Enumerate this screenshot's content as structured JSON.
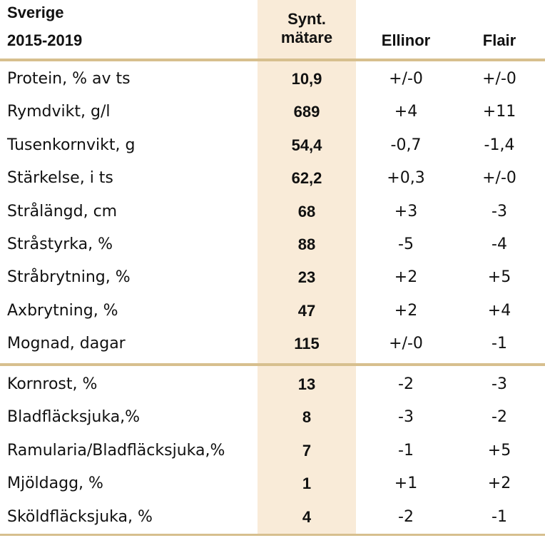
{
  "header": {
    "title_line1": "Sverige",
    "title_line2": "2015-2019",
    "col_synt_line1": "Synt.",
    "col_synt_line2": "mätare",
    "col_ellinor": "Ellinor",
    "col_flair": "Flair"
  },
  "colors": {
    "highlight": "#f9ebd8",
    "rule": "#d7bf8e"
  },
  "rows": [
    {
      "label": "Protein, % av ts",
      "value": "10,9",
      "ellinor": "+/-0",
      "flair": "+/-0"
    },
    {
      "label": "Rymdvikt, g/l",
      "value": "689",
      "ellinor": "+4",
      "flair": "+11"
    },
    {
      "label": "Tusenkornvikt, g",
      "value": "54,4",
      "ellinor": "-0,7",
      "flair": "-1,4"
    },
    {
      "label": "Stärkelse, i ts",
      "value": "62,2",
      "ellinor": "+0,3",
      "flair": "+/-0"
    },
    {
      "label": "Strålängd, cm",
      "value": "68",
      "ellinor": "+3",
      "flair": "-3"
    },
    {
      "label": "Stråstyrka, %",
      "value": "88",
      "ellinor": "-5",
      "flair": "-4"
    },
    {
      "label": "Stråbrytning, %",
      "value": "23",
      "ellinor": "+2",
      "flair": "+5"
    },
    {
      "label": "Axbrytning, %",
      "value": "47",
      "ellinor": "+2",
      "flair": "+4"
    },
    {
      "label": "Mognad, dagar",
      "value": "115",
      "ellinor": "+/-0",
      "flair": "-1"
    },
    {
      "label": "Kornrost, %",
      "value": "13",
      "ellinor": "-2",
      "flair": "-3"
    },
    {
      "label": "Bladfläcksjuka,%",
      "value": "8",
      "ellinor": "-3",
      "flair": "-2"
    },
    {
      "label": "Ramularia/Bladfläcksjuka,%",
      "value": "7",
      "ellinor": "-1",
      "flair": "+5"
    },
    {
      "label": "Mjöldagg, %",
      "value": "1",
      "ellinor": "+1",
      "flair": "+2"
    },
    {
      "label": "Sköldfläcksjuka, %",
      "value": "4",
      "ellinor": "-2",
      "flair": "-1"
    }
  ]
}
